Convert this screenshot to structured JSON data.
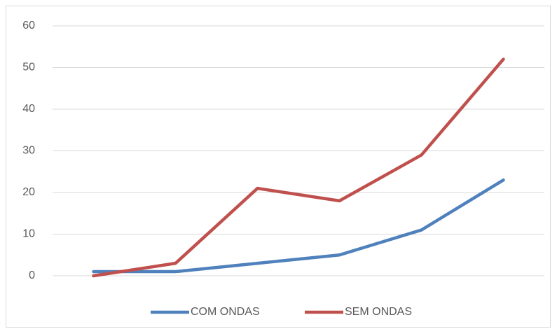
{
  "chart_data": {
    "type": "line",
    "categories": [
      null,
      null,
      null,
      null,
      null,
      null
    ],
    "series": [
      {
        "name": "COM ONDAS",
        "color": "#4f81bd",
        "values": [
          1,
          1,
          3,
          5,
          11,
          23
        ]
      },
      {
        "name": "SEM ONDAS",
        "color": "#c0504d",
        "values": [
          0,
          3,
          21,
          18,
          29,
          52
        ]
      }
    ],
    "ylim": [
      0,
      60
    ],
    "yticks": [
      0,
      10,
      20,
      30,
      40,
      50,
      60
    ],
    "grid": true,
    "legend": "bottom"
  }
}
